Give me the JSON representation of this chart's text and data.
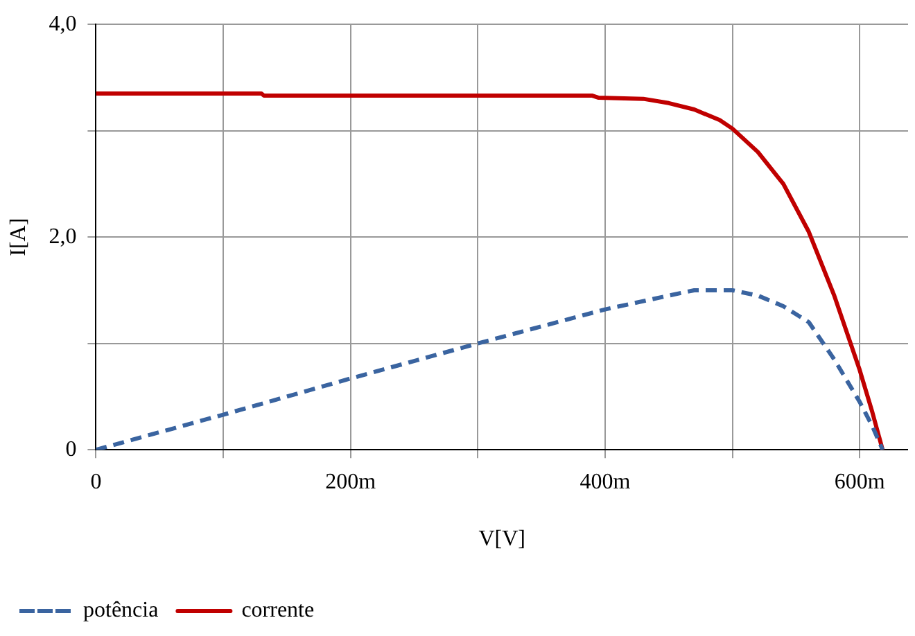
{
  "chart_data": {
    "type": "line",
    "xlabel": "V[V]",
    "ylabel": "I[A]",
    "xlim": [
      0,
      638
    ],
    "ylim": [
      0,
      4
    ],
    "xticks": [
      0,
      {
        "value": 100,
        "label": null
      },
      {
        "value": 200,
        "label": "200m"
      },
      {
        "value": 300,
        "label": null
      },
      {
        "value": 400,
        "label": "400m"
      },
      {
        "value": 500,
        "label": null
      },
      {
        "value": 600,
        "label": "600m"
      }
    ],
    "yticks": [
      0,
      {
        "value": 1,
        "label": null
      },
      {
        "value": 2,
        "label": "2,0"
      },
      {
        "value": 3,
        "label": null
      },
      {
        "value": 4,
        "label": "4,0"
      }
    ],
    "grid": true,
    "legend": "bottom",
    "marker": "none",
    "series": [
      {
        "name": "potência",
        "color": "#3a64a0",
        "line_style": "dashed",
        "x": [
          0,
          100,
          200,
          300,
          400,
          450,
          470,
          500,
          520,
          540,
          560,
          580,
          600,
          610,
          618
        ],
        "values": [
          0,
          0.33,
          0.67,
          1.0,
          1.32,
          1.45,
          1.5,
          1.5,
          1.45,
          1.35,
          1.2,
          0.85,
          0.45,
          0.22,
          0
        ]
      },
      {
        "name": "corrente",
        "color": "#c00000",
        "line_style": "solid",
        "x": [
          0,
          130,
          132,
          390,
          395,
          430,
          450,
          470,
          490,
          500,
          520,
          540,
          560,
          580,
          600,
          610,
          618
        ],
        "values": [
          3.35,
          3.35,
          3.33,
          3.33,
          3.31,
          3.3,
          3.26,
          3.2,
          3.1,
          3.02,
          2.8,
          2.5,
          2.05,
          1.45,
          0.75,
          0.35,
          0
        ]
      }
    ]
  }
}
